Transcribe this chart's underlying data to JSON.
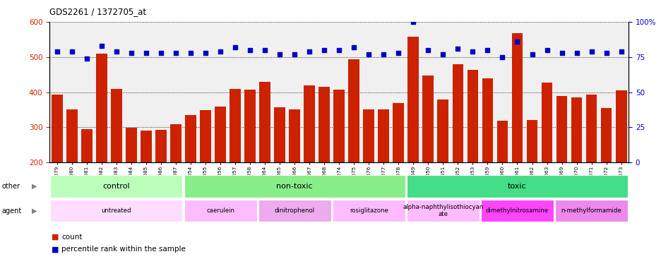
{
  "title": "GDS2261 / 1372705_at",
  "samples": [
    "GSM127079",
    "GSM127080",
    "GSM127081",
    "GSM127082",
    "GSM127083",
    "GSM127084",
    "GSM127085",
    "GSM127086",
    "GSM127087",
    "GSM127054",
    "GSM127055",
    "GSM127056",
    "GSM127057",
    "GSM127058",
    "GSM127064",
    "GSM127065",
    "GSM127066",
    "GSM127067",
    "GSM127068",
    "GSM127074",
    "GSM127075",
    "GSM127076",
    "GSM127077",
    "GSM127078",
    "GSM127049",
    "GSM127050",
    "GSM127051",
    "GSM127052",
    "GSM127053",
    "GSM127059",
    "GSM127060",
    "GSM127061",
    "GSM127062",
    "GSM127063",
    "GSM127069",
    "GSM127070",
    "GSM127071",
    "GSM127072",
    "GSM127073"
  ],
  "counts": [
    393,
    352,
    295,
    509,
    410,
    298,
    290,
    293,
    308,
    336,
    350,
    360,
    410,
    408,
    430,
    357,
    352,
    420,
    415,
    407,
    494,
    352,
    352,
    370,
    557,
    447,
    380,
    480,
    463,
    440,
    318,
    568,
    320,
    428,
    389,
    385,
    393,
    355,
    405
  ],
  "percentile_ranks": [
    79,
    79,
    74,
    83,
    79,
    78,
    78,
    78,
    78,
    78,
    78,
    79,
    82,
    80,
    80,
    77,
    77,
    79,
    80,
    80,
    82,
    77,
    77,
    78,
    100,
    80,
    77,
    81,
    79,
    80,
    75,
    86,
    77,
    80,
    78,
    78,
    79,
    78,
    79
  ],
  "bar_color": "#cc2200",
  "dot_color": "#0000cc",
  "ylim_left": [
    200,
    600
  ],
  "ylim_right": [
    0,
    100
  ],
  "yticks_left": [
    200,
    300,
    400,
    500,
    600
  ],
  "yticks_right": [
    0,
    25,
    50,
    75,
    100
  ],
  "groups_other": [
    {
      "label": "control",
      "start": 0,
      "end": 9,
      "color": "#bbffbb"
    },
    {
      "label": "non-toxic",
      "start": 9,
      "end": 24,
      "color": "#88ee88"
    },
    {
      "label": "toxic",
      "start": 24,
      "end": 39,
      "color": "#44dd88"
    }
  ],
  "groups_agent": [
    {
      "label": "untreated",
      "start": 0,
      "end": 9,
      "color": "#ffddff"
    },
    {
      "label": "caerulein",
      "start": 9,
      "end": 14,
      "color": "#ffbbff"
    },
    {
      "label": "dinitrophenol",
      "start": 14,
      "end": 19,
      "color": "#eeaaee"
    },
    {
      "label": "rosiglitazone",
      "start": 19,
      "end": 24,
      "color": "#ffbbff"
    },
    {
      "label": "alpha-naphthylisothiocyan\nate",
      "start": 24,
      "end": 29,
      "color": "#ffbbff"
    },
    {
      "label": "dimethylnitrosamine",
      "start": 29,
      "end": 34,
      "color": "#ff44ff"
    },
    {
      "label": "n-methylformamide",
      "start": 34,
      "end": 39,
      "color": "#ee88ee"
    }
  ],
  "background_color": "#f0f0f0",
  "dot_size": 22,
  "bar_width": 0.75
}
